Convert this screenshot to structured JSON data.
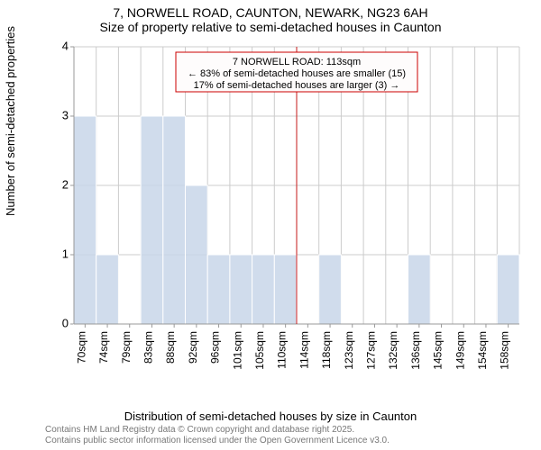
{
  "title": {
    "line1": "7, NORWELL ROAD, CAUNTON, NEWARK, NG23 6AH",
    "line2": "Size of property relative to semi-detached houses in Caunton"
  },
  "y_axis": {
    "label": "Number of semi-detached properties",
    "min": 0,
    "max": 4,
    "ticks": [
      0,
      1,
      2,
      3,
      4
    ],
    "grid_color": "#cccccc",
    "label_fontsize": 13
  },
  "x_axis": {
    "label": "Distribution of semi-detached houses by size in Caunton",
    "categories": [
      "70sqm",
      "74sqm",
      "79sqm",
      "83sqm",
      "88sqm",
      "92sqm",
      "96sqm",
      "101sqm",
      "105sqm",
      "110sqm",
      "114sqm",
      "118sqm",
      "123sqm",
      "127sqm",
      "132sqm",
      "136sqm",
      "145sqm",
      "149sqm",
      "154sqm",
      "158sqm"
    ],
    "label_fontsize": 13,
    "tick_fontsize": 12
  },
  "bars": {
    "values": [
      3,
      1,
      0,
      3,
      3,
      2,
      1,
      1,
      1,
      1,
      0,
      1,
      0,
      0,
      0,
      1,
      0,
      0,
      0,
      1
    ],
    "fill_color": "#c8d6e9",
    "fill_opacity": 0.85,
    "bar_width_ratio": 1.0
  },
  "reference_line": {
    "index_position": 10,
    "color": "#cc0000",
    "opacity": 0.7
  },
  "annotation": {
    "lines": [
      "7 NORWELL ROAD: 113sqm",
      "← 83% of semi-detached houses are smaller (15)",
      "17% of semi-detached houses are larger (3) →"
    ],
    "box_fill": "#fefcfc",
    "box_stroke": "#cc0000",
    "text_fontsize": 11
  },
  "attribution": {
    "line1": "Contains HM Land Registry data © Crown copyright and database right 2025.",
    "line2": "Contains public sector information licensed under the Open Government Licence v3.0."
  },
  "plot_style": {
    "background_color": "#ffffff",
    "axis_color": "#999999"
  }
}
